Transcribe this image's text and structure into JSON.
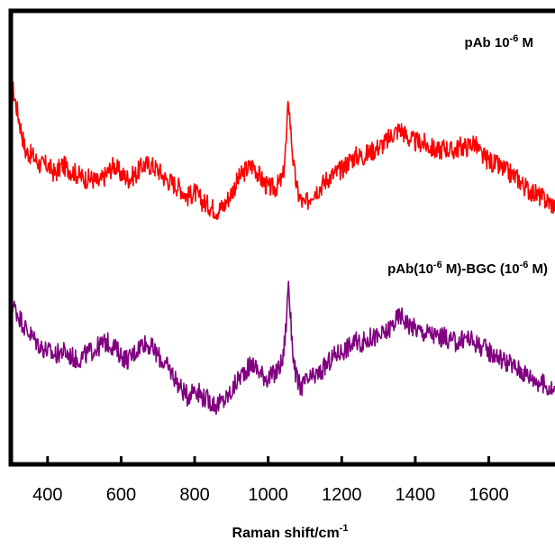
{
  "chart_data": {
    "type": "line",
    "xlabel": "Raman shift/cm",
    "xlabel_sup": "-1",
    "xlim": [
      300,
      1780
    ],
    "ylim": [
      0,
      1
    ],
    "x_ticks": [
      400,
      600,
      800,
      1000,
      1200,
      1400,
      1600
    ],
    "y_ticks_labeled": false,
    "grid": false,
    "annotations": [
      {
        "parts": [
          {
            "text": "pAb 10",
            "sup": false
          },
          {
            "text": "-6",
            "sup": true
          },
          {
            "text": " M",
            "sup": false
          }
        ]
      },
      {
        "parts": [
          {
            "text": "pAb(10",
            "sup": false
          },
          {
            "text": "-6",
            "sup": true
          },
          {
            "text": " M)-BGC (10",
            "sup": false
          },
          {
            "text": "-6",
            "sup": true
          },
          {
            "text": " M)",
            "sup": false
          }
        ]
      }
    ],
    "series": [
      {
        "color": "#ff0000",
        "points": [
          [
            300,
            0.85
          ],
          [
            320,
            0.77
          ],
          [
            340,
            0.69
          ],
          [
            360,
            0.68
          ],
          [
            380,
            0.66
          ],
          [
            400,
            0.66
          ],
          [
            420,
            0.64
          ],
          [
            440,
            0.66
          ],
          [
            460,
            0.65
          ],
          [
            480,
            0.64
          ],
          [
            500,
            0.63
          ],
          [
            520,
            0.63
          ],
          [
            540,
            0.62
          ],
          [
            560,
            0.64
          ],
          [
            580,
            0.66
          ],
          [
            600,
            0.64
          ],
          [
            620,
            0.63
          ],
          [
            640,
            0.64
          ],
          [
            660,
            0.66
          ],
          [
            680,
            0.66
          ],
          [
            700,
            0.65
          ],
          [
            720,
            0.63
          ],
          [
            740,
            0.62
          ],
          [
            760,
            0.61
          ],
          [
            780,
            0.59
          ],
          [
            800,
            0.6
          ],
          [
            820,
            0.58
          ],
          [
            840,
            0.57
          ],
          [
            860,
            0.56
          ],
          [
            880,
            0.57
          ],
          [
            900,
            0.6
          ],
          [
            920,
            0.63
          ],
          [
            940,
            0.65
          ],
          [
            960,
            0.66
          ],
          [
            980,
            0.63
          ],
          [
            1000,
            0.61
          ],
          [
            1020,
            0.61
          ],
          [
            1040,
            0.63
          ],
          [
            1050,
            0.72
          ],
          [
            1055,
            0.81
          ],
          [
            1060,
            0.75
          ],
          [
            1070,
            0.65
          ],
          [
            1080,
            0.6
          ],
          [
            1090,
            0.58
          ],
          [
            1100,
            0.57
          ],
          [
            1120,
            0.6
          ],
          [
            1140,
            0.61
          ],
          [
            1160,
            0.63
          ],
          [
            1180,
            0.64
          ],
          [
            1200,
            0.65
          ],
          [
            1220,
            0.67
          ],
          [
            1240,
            0.68
          ],
          [
            1260,
            0.68
          ],
          [
            1280,
            0.69
          ],
          [
            1300,
            0.7
          ],
          [
            1320,
            0.71
          ],
          [
            1340,
            0.73
          ],
          [
            1360,
            0.74
          ],
          [
            1380,
            0.72
          ],
          [
            1400,
            0.71
          ],
          [
            1420,
            0.71
          ],
          [
            1440,
            0.7
          ],
          [
            1460,
            0.69
          ],
          [
            1480,
            0.7
          ],
          [
            1500,
            0.69
          ],
          [
            1520,
            0.7
          ],
          [
            1540,
            0.7
          ],
          [
            1560,
            0.71
          ],
          [
            1580,
            0.68
          ],
          [
            1600,
            0.67
          ],
          [
            1620,
            0.66
          ],
          [
            1640,
            0.65
          ],
          [
            1660,
            0.64
          ],
          [
            1680,
            0.63
          ],
          [
            1700,
            0.61
          ],
          [
            1720,
            0.6
          ],
          [
            1740,
            0.59
          ],
          [
            1760,
            0.58
          ],
          [
            1780,
            0.57
          ]
        ]
      },
      {
        "color": "#800080",
        "points": [
          [
            300,
            0.36
          ],
          [
            320,
            0.33
          ],
          [
            340,
            0.3
          ],
          [
            360,
            0.28
          ],
          [
            380,
            0.26
          ],
          [
            400,
            0.25
          ],
          [
            420,
            0.24
          ],
          [
            440,
            0.25
          ],
          [
            460,
            0.24
          ],
          [
            480,
            0.23
          ],
          [
            500,
            0.24
          ],
          [
            520,
            0.25
          ],
          [
            540,
            0.26
          ],
          [
            560,
            0.27
          ],
          [
            580,
            0.26
          ],
          [
            600,
            0.24
          ],
          [
            620,
            0.23
          ],
          [
            640,
            0.25
          ],
          [
            660,
            0.27
          ],
          [
            680,
            0.26
          ],
          [
            700,
            0.24
          ],
          [
            720,
            0.22
          ],
          [
            740,
            0.2
          ],
          [
            760,
            0.17
          ],
          [
            780,
            0.15
          ],
          [
            800,
            0.17
          ],
          [
            820,
            0.15
          ],
          [
            840,
            0.14
          ],
          [
            860,
            0.13
          ],
          [
            880,
            0.14
          ],
          [
            900,
            0.16
          ],
          [
            920,
            0.19
          ],
          [
            940,
            0.21
          ],
          [
            960,
            0.22
          ],
          [
            980,
            0.2
          ],
          [
            1000,
            0.19
          ],
          [
            1020,
            0.2
          ],
          [
            1040,
            0.23
          ],
          [
            1050,
            0.32
          ],
          [
            1055,
            0.41
          ],
          [
            1060,
            0.33
          ],
          [
            1070,
            0.22
          ],
          [
            1080,
            0.18
          ],
          [
            1090,
            0.17
          ],
          [
            1100,
            0.18
          ],
          [
            1120,
            0.19
          ],
          [
            1140,
            0.2
          ],
          [
            1160,
            0.22
          ],
          [
            1180,
            0.24
          ],
          [
            1200,
            0.25
          ],
          [
            1220,
            0.26
          ],
          [
            1240,
            0.27
          ],
          [
            1260,
            0.27
          ],
          [
            1280,
            0.28
          ],
          [
            1300,
            0.28
          ],
          [
            1320,
            0.29
          ],
          [
            1340,
            0.31
          ],
          [
            1360,
            0.33
          ],
          [
            1380,
            0.31
          ],
          [
            1400,
            0.3
          ],
          [
            1420,
            0.29
          ],
          [
            1440,
            0.29
          ],
          [
            1460,
            0.28
          ],
          [
            1480,
            0.28
          ],
          [
            1500,
            0.27
          ],
          [
            1520,
            0.27
          ],
          [
            1540,
            0.28
          ],
          [
            1560,
            0.27
          ],
          [
            1580,
            0.26
          ],
          [
            1600,
            0.25
          ],
          [
            1620,
            0.24
          ],
          [
            1640,
            0.23
          ],
          [
            1660,
            0.22
          ],
          [
            1680,
            0.21
          ],
          [
            1700,
            0.2
          ],
          [
            1720,
            0.19
          ],
          [
            1740,
            0.18
          ],
          [
            1760,
            0.17
          ],
          [
            1780,
            0.16
          ]
        ]
      }
    ]
  }
}
